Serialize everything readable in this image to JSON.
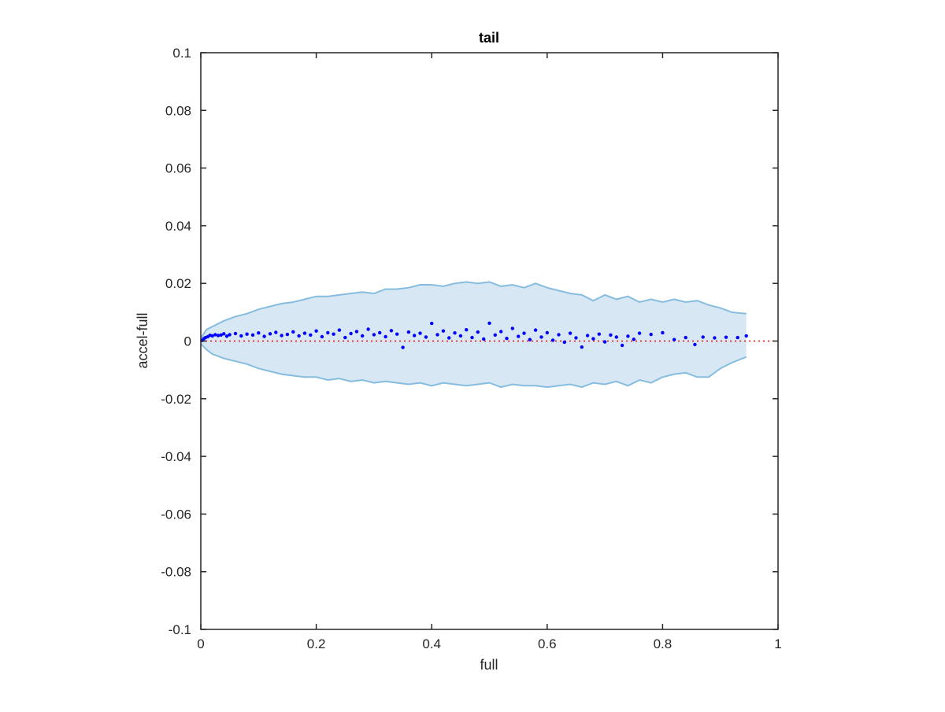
{
  "colors": {
    "band_fill": "#d7e7f4",
    "band_edge": "#86bddf",
    "points": "#0000ff",
    "zero_line": "#ff0000",
    "axes": "#262626"
  },
  "chart_data": {
    "type": "scatter",
    "title": "tail",
    "xlabel": "full",
    "ylabel": "accel-full",
    "xlim": [
      0,
      1
    ],
    "ylim": [
      -0.1,
      0.1
    ],
    "grid": false,
    "x_ticks": [
      0,
      0.2,
      0.4,
      0.6,
      0.8,
      1
    ],
    "x_tick_labels": [
      "0",
      "0.2",
      "0.4",
      "0.6",
      "0.8",
      "1"
    ],
    "y_ticks": [
      0.1,
      0.08,
      0.06,
      0.04,
      0.02,
      0,
      -0.02,
      -0.04,
      -0.06,
      -0.08,
      -0.1
    ],
    "y_tick_labels": [
      "0.1",
      "0.08",
      "0.06",
      "0.04",
      "0.02",
      "0",
      "-0.02",
      "-0.04",
      "-0.06",
      "-0.08",
      "-0.1"
    ],
    "reference_line": {
      "y": 0,
      "style": "dotted"
    },
    "band": {
      "x": [
        0,
        0.01,
        0.02,
        0.04,
        0.06,
        0.08,
        0.1,
        0.12,
        0.14,
        0.16,
        0.18,
        0.2,
        0.22,
        0.24,
        0.26,
        0.28,
        0.3,
        0.32,
        0.34,
        0.36,
        0.38,
        0.4,
        0.42,
        0.44,
        0.46,
        0.48,
        0.5,
        0.52,
        0.54,
        0.56,
        0.58,
        0.6,
        0.62,
        0.64,
        0.66,
        0.68,
        0.7,
        0.72,
        0.74,
        0.76,
        0.78,
        0.8,
        0.82,
        0.84,
        0.86,
        0.88,
        0.9,
        0.92,
        0.945
      ],
      "upper": [
        0.001,
        0.004,
        0.005,
        0.007,
        0.0085,
        0.0095,
        0.011,
        0.012,
        0.013,
        0.0135,
        0.0145,
        0.0155,
        0.0155,
        0.016,
        0.0165,
        0.017,
        0.0165,
        0.018,
        0.018,
        0.0185,
        0.0195,
        0.0195,
        0.019,
        0.02,
        0.0205,
        0.02,
        0.0205,
        0.019,
        0.0195,
        0.0185,
        0.02,
        0.0185,
        0.0175,
        0.0165,
        0.016,
        0.014,
        0.016,
        0.0145,
        0.0155,
        0.0135,
        0.0145,
        0.0135,
        0.0145,
        0.0135,
        0.014,
        0.0125,
        0.0115,
        0.01,
        0.0095
      ],
      "lower": [
        -0.001,
        -0.003,
        -0.0045,
        -0.006,
        -0.007,
        -0.008,
        -0.0095,
        -0.0105,
        -0.0115,
        -0.012,
        -0.0125,
        -0.0125,
        -0.0135,
        -0.013,
        -0.014,
        -0.0135,
        -0.0145,
        -0.014,
        -0.0145,
        -0.015,
        -0.0145,
        -0.0155,
        -0.0145,
        -0.015,
        -0.0155,
        -0.015,
        -0.0145,
        -0.016,
        -0.015,
        -0.0155,
        -0.0155,
        -0.016,
        -0.0155,
        -0.015,
        -0.016,
        -0.0145,
        -0.015,
        -0.014,
        -0.0155,
        -0.0135,
        -0.0145,
        -0.0125,
        -0.0115,
        -0.011,
        -0.0125,
        -0.0125,
        -0.0095,
        -0.0075,
        -0.0055
      ]
    },
    "points": {
      "x": [
        0.002,
        0.005,
        0.008,
        0.012,
        0.016,
        0.02,
        0.025,
        0.03,
        0.035,
        0.04,
        0.045,
        0.05,
        0.06,
        0.07,
        0.08,
        0.09,
        0.1,
        0.11,
        0.12,
        0.13,
        0.14,
        0.15,
        0.16,
        0.17,
        0.18,
        0.19,
        0.2,
        0.21,
        0.22,
        0.23,
        0.24,
        0.25,
        0.26,
        0.27,
        0.28,
        0.29,
        0.3,
        0.31,
        0.32,
        0.33,
        0.34,
        0.35,
        0.36,
        0.37,
        0.38,
        0.39,
        0.4,
        0.41,
        0.42,
        0.43,
        0.44,
        0.45,
        0.46,
        0.47,
        0.48,
        0.49,
        0.5,
        0.51,
        0.52,
        0.53,
        0.54,
        0.55,
        0.56,
        0.57,
        0.58,
        0.59,
        0.6,
        0.61,
        0.62,
        0.63,
        0.64,
        0.65,
        0.66,
        0.67,
        0.68,
        0.69,
        0.7,
        0.71,
        0.72,
        0.73,
        0.74,
        0.75,
        0.76,
        0.78,
        0.8,
        0.82,
        0.84,
        0.856,
        0.87,
        0.89,
        0.91,
        0.93,
        0.945
      ],
      "y": [
        0.0002,
        0.0008,
        0.0012,
        0.0015,
        0.002,
        0.0018,
        0.0022,
        0.0019,
        0.0021,
        0.0025,
        0.0017,
        0.0022,
        0.0026,
        0.0018,
        0.0024,
        0.0021,
        0.0028,
        0.0016,
        0.0025,
        0.003,
        0.0019,
        0.0023,
        0.0032,
        0.0018,
        0.0027,
        0.0021,
        0.0035,
        0.0015,
        0.0029,
        0.0024,
        0.0038,
        0.0012,
        0.0026,
        0.0033,
        0.0018,
        0.0041,
        0.0022,
        0.0029,
        0.0015,
        0.0036,
        0.0024,
        -0.0022,
        0.0031,
        0.0019,
        0.0027,
        0.0014,
        0.0061,
        0.0022,
        0.0035,
        0.0011,
        0.0028,
        0.0018,
        0.0039,
        0.0012,
        0.0031,
        0.0007,
        0.0062,
        0.0021,
        0.0033,
        0.0009,
        0.0044,
        0.0016,
        0.0027,
        0.0005,
        0.0038,
        0.0014,
        0.0029,
        0.0003,
        0.0022,
        -0.0004,
        0.0027,
        0.0011,
        -0.0021,
        0.0019,
        0.0008,
        0.0024,
        -0.0003,
        0.0021,
        0.0014,
        -0.0015,
        0.0017,
        0.0006,
        0.0027,
        0.0023,
        0.0029,
        0.0005,
        0.0012,
        -0.0012,
        0.0014,
        0.0011,
        0.0013,
        0.0012,
        0.0018
      ]
    }
  }
}
